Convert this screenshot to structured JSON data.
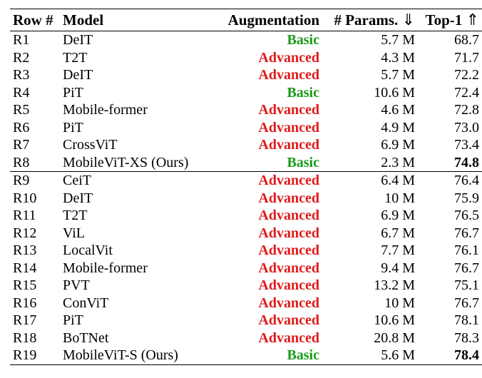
{
  "header": {
    "row": "Row #",
    "model": "Model",
    "augmentation": "Augmentation",
    "params": "# Params.",
    "params_arrow": "⇓",
    "top1": "Top-1",
    "top1_arrow": "⇑"
  },
  "colors": {
    "basic": "#1a9a1a",
    "advanced": "#e01b1b"
  },
  "rows": [
    {
      "row": "R1",
      "model": "DeIT",
      "aug": "Basic",
      "params": "5.7 M",
      "top1": "68.7",
      "best": false
    },
    {
      "row": "R2",
      "model": "T2T",
      "aug": "Advanced",
      "params": "4.3 M",
      "top1": "71.7",
      "best": false
    },
    {
      "row": "R3",
      "model": "DeIT",
      "aug": "Advanced",
      "params": "5.7 M",
      "top1": "72.2",
      "best": false
    },
    {
      "row": "R4",
      "model": "PiT",
      "aug": "Basic",
      "params": "10.6 M",
      "top1": "72.4",
      "best": false
    },
    {
      "row": "R5",
      "model": "Mobile-former",
      "aug": "Advanced",
      "params": "4.6 M",
      "top1": "72.8",
      "best": false
    },
    {
      "row": "R6",
      "model": "PiT",
      "aug": "Advanced",
      "params": "4.9 M",
      "top1": "73.0",
      "best": false
    },
    {
      "row": "R7",
      "model": "CrossViT",
      "aug": "Advanced",
      "params": "6.9 M",
      "top1": "73.4",
      "best": false
    },
    {
      "row": "R8",
      "model": "MobileViT-XS (Ours)",
      "aug": "Basic",
      "params": "2.3 M",
      "top1": "74.8",
      "best": true
    },
    {
      "row": "R9",
      "model": "CeiT",
      "aug": "Advanced",
      "params": "6.4 M",
      "top1": "76.4",
      "best": false
    },
    {
      "row": "R10",
      "model": "DeIT",
      "aug": "Advanced",
      "params": "10 M",
      "top1": "75.9",
      "best": false
    },
    {
      "row": "R11",
      "model": "T2T",
      "aug": "Advanced",
      "params": "6.9 M",
      "top1": "76.5",
      "best": false
    },
    {
      "row": "R12",
      "model": "ViL",
      "aug": "Advanced",
      "params": "6.7 M",
      "top1": "76.7",
      "best": false
    },
    {
      "row": "R13",
      "model": "LocalVit",
      "aug": "Advanced",
      "params": "7.7 M",
      "top1": "76.1",
      "best": false
    },
    {
      "row": "R14",
      "model": "Mobile-former",
      "aug": "Advanced",
      "params": "9.4 M",
      "top1": "76.7",
      "best": false
    },
    {
      "row": "R15",
      "model": "PVT",
      "aug": "Advanced",
      "params": "13.2 M",
      "top1": "75.1",
      "best": false
    },
    {
      "row": "R16",
      "model": "ConViT",
      "aug": "Advanced",
      "params": "10 M",
      "top1": "76.7",
      "best": false
    },
    {
      "row": "R17",
      "model": "PiT",
      "aug": "Advanced",
      "params": "10.6 M",
      "top1": "78.1",
      "best": false
    },
    {
      "row": "R18",
      "model": "BoTNet",
      "aug": "Advanced",
      "params": "20.8 M",
      "top1": "78.3",
      "best": false
    },
    {
      "row": "R19",
      "model": "MobileViT-S (Ours)",
      "aug": "Basic",
      "params": "5.6 M",
      "top1": "78.4",
      "best": true
    }
  ]
}
